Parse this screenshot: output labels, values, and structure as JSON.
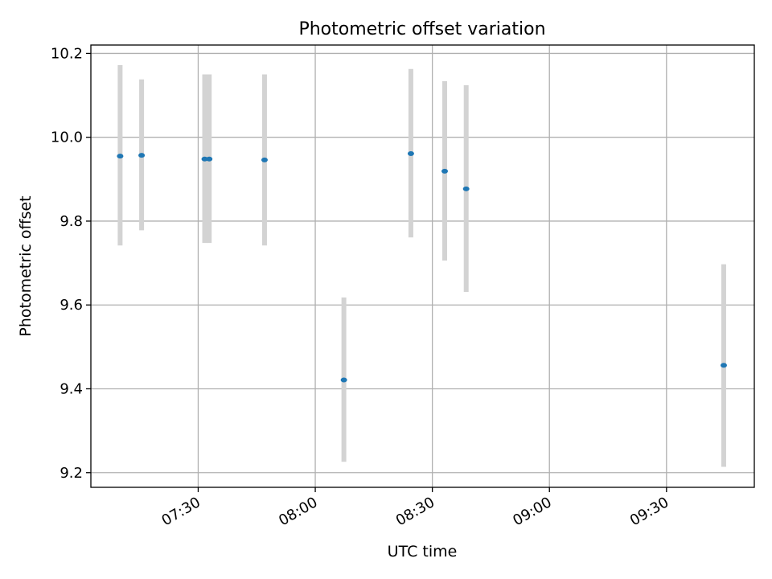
{
  "chart_data": {
    "type": "scatter",
    "title": "Photometric offset variation",
    "xlabel": "UTC time",
    "ylabel": "Photometric offset",
    "x_ticks": [
      "07:30",
      "08:00",
      "08:30",
      "09:00",
      "09:30"
    ],
    "y_ticks": [
      "9.2",
      "9.4",
      "9.6",
      "9.8",
      "10.0",
      "10.2"
    ],
    "xlim": [
      "07:02:30",
      "09:52:30"
    ],
    "ylim": [
      9.165,
      10.22
    ],
    "grid": true,
    "marker_color": "#1f77b4",
    "errorbar_color": "#d3d3d3",
    "points": [
      {
        "time": "07:10:00",
        "y": 9.955,
        "err_low": 9.742,
        "err_high": 10.172
      },
      {
        "time": "07:15:30",
        "y": 9.957,
        "err_low": 9.778,
        "err_high": 10.138
      },
      {
        "time": "07:31:40",
        "y": 9.948,
        "err_low": 9.748,
        "err_high": 10.15
      },
      {
        "time": "07:32:50",
        "y": 9.948,
        "err_low": 9.748,
        "err_high": 10.15
      },
      {
        "time": "07:47:00",
        "y": 9.946,
        "err_low": 9.742,
        "err_high": 10.15
      },
      {
        "time": "08:07:20",
        "y": 9.421,
        "err_low": 9.226,
        "err_high": 9.618
      },
      {
        "time": "08:24:30",
        "y": 9.961,
        "err_low": 9.761,
        "err_high": 10.163
      },
      {
        "time": "08:33:10",
        "y": 9.919,
        "err_low": 9.706,
        "err_high": 10.134
      },
      {
        "time": "08:38:40",
        "y": 9.877,
        "err_low": 9.631,
        "err_high": 10.124
      },
      {
        "time": "09:44:40",
        "y": 9.456,
        "err_low": 9.214,
        "err_high": 9.697
      }
    ]
  }
}
